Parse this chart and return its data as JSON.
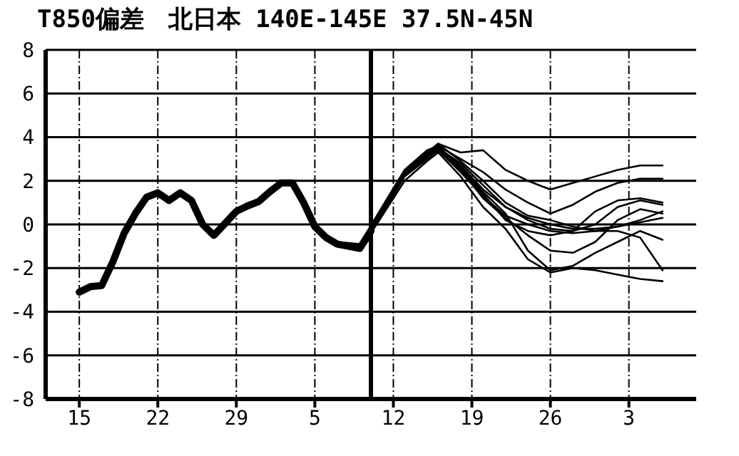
{
  "chart_data": {
    "type": "line",
    "title": "T850偏差　北日本 140E-145E 37.5N-45N",
    "xlim": [
      "--10-12",
      "--12-09"
    ],
    "xticks": [
      {
        "value": "--10-15",
        "label": "15"
      },
      {
        "value": "--10-22",
        "label": "22"
      },
      {
        "value": "--10-29",
        "label": "29"
      },
      {
        "value": "--11-05",
        "label": "5"
      },
      {
        "value": "--11-12",
        "label": "12"
      },
      {
        "value": "--11-19",
        "label": "19"
      },
      {
        "value": "--11-26",
        "label": "26"
      },
      {
        "value": "--12-03",
        "label": "3"
      }
    ],
    "ylim": [
      -8,
      8
    ],
    "yticks": [
      -8,
      -6,
      -4,
      -2,
      0,
      2,
      4,
      6,
      8
    ],
    "grid": true,
    "legend": false,
    "marker": "none",
    "line_style": "solid",
    "ref_lines": [
      {
        "axis": "x",
        "value": "--11-10",
        "color": "#000000"
      }
    ],
    "series": [
      {
        "color": "#000000",
        "x": [
          "--10-15",
          "--10-16",
          "--10-17",
          "--10-18",
          "--10-19",
          "--10-20",
          "--10-21",
          "--10-22",
          "--10-23",
          "--10-24",
          "--10-25",
          "--10-26",
          "--10-27",
          "--10-28",
          "--10-29",
          "--10-30",
          "--10-31",
          "--11-01",
          "--11-02",
          "--11-03",
          "--11-04",
          "--11-05",
          "--11-06",
          "--11-07",
          "--11-08",
          "--11-09",
          "--11-10"
        ],
        "values": [
          -3.1,
          -2.85,
          -2.8,
          -1.7,
          -0.4,
          0.5,
          1.25,
          1.45,
          1.1,
          1.45,
          1.1,
          0,
          -0.5,
          0.05,
          0.6,
          0.85,
          1.05,
          1.5,
          1.9,
          1.9,
          1,
          -0.1,
          -0.6,
          -0.9,
          -1,
          -1.1,
          -0.3
        ]
      },
      {
        "color": "#000000",
        "x": [
          "--11-05",
          "--11-07",
          "--11-09",
          "--11-11",
          "--11-13",
          "--11-15",
          "--11-16",
          "--11-18",
          "--11-20",
          "--11-22",
          "--11-24",
          "--11-26",
          "--11-28",
          "--11-30",
          "--12-02",
          "--12-04",
          "--12-06"
        ],
        "values": [
          -0.2,
          -0.9,
          -1,
          0.7,
          2.4,
          3.3,
          3.7,
          3.3,
          3.4,
          2.5,
          2,
          1.6,
          1.9,
          2.2,
          2.5,
          2.7,
          2.7
        ]
      },
      {
        "color": "#000000",
        "x": [
          "--11-05",
          "--11-07",
          "--11-09",
          "--11-11",
          "--11-13",
          "--11-15",
          "--11-16",
          "--11-18",
          "--11-20",
          "--11-22",
          "--11-24",
          "--11-26",
          "--11-28",
          "--11-30",
          "--12-02",
          "--12-04",
          "--12-06"
        ],
        "values": [
          -0.2,
          -0.9,
          -1.1,
          0.6,
          2.3,
          3.2,
          3.6,
          3,
          2.4,
          1.6,
          1,
          0.5,
          0.9,
          1.5,
          1.9,
          2.1,
          2.1
        ]
      },
      {
        "color": "#000000",
        "x": [
          "--11-05",
          "--11-07",
          "--11-09",
          "--11-11",
          "--11-13",
          "--11-15",
          "--11-16",
          "--11-18",
          "--11-20",
          "--11-22",
          "--11-24",
          "--11-26",
          "--11-28",
          "--11-30",
          "--12-02",
          "--12-04",
          "--12-06"
        ],
        "values": [
          -0.2,
          -1,
          -1.1,
          0.5,
          2.2,
          3.1,
          3.5,
          2.8,
          1.8,
          0.8,
          0.2,
          -0.2,
          -0.3,
          0,
          0.8,
          1.1,
          0.9
        ]
      },
      {
        "color": "#000000",
        "x": [
          "--11-05",
          "--11-07",
          "--11-09",
          "--11-11",
          "--11-13",
          "--11-15",
          "--11-16",
          "--11-18",
          "--11-20",
          "--11-22",
          "--11-24",
          "--11-26",
          "--11-28",
          "--11-30",
          "--12-02",
          "--12-04",
          "--12-06"
        ],
        "values": [
          -0.2,
          -0.9,
          -1,
          0.6,
          2.3,
          3.2,
          3.4,
          2.5,
          1.2,
          0.3,
          -0.5,
          -1.2,
          -1.3,
          -0.8,
          0.2,
          0.7,
          0.5
        ]
      },
      {
        "color": "#000000",
        "x": [
          "--11-05",
          "--11-07",
          "--11-09",
          "--11-11",
          "--11-13",
          "--11-15",
          "--11-16",
          "--11-18",
          "--11-20",
          "--11-22",
          "--11-24",
          "--11-26",
          "--11-28",
          "--11-30",
          "--12-02",
          "--12-04",
          "--12-06"
        ],
        "values": [
          -0.2,
          -0.8,
          -0.9,
          0.8,
          2.5,
          3.4,
          3.6,
          2.6,
          1.5,
          0.5,
          -1.2,
          -2.1,
          -1.9,
          -1.3,
          -0.8,
          -0.3,
          -0.7
        ]
      },
      {
        "color": "#000000",
        "x": [
          "--11-05",
          "--11-07",
          "--11-09",
          "--11-11",
          "--11-13",
          "--11-15",
          "--11-16",
          "--11-18",
          "--11-20",
          "--11-22",
          "--11-24",
          "--11-26",
          "--11-28",
          "--11-30",
          "--12-02",
          "--12-04",
          "--12-06"
        ],
        "values": [
          -0.2,
          -1,
          -1.2,
          0.4,
          2,
          2.9,
          3.3,
          2.2,
          0.8,
          -0.2,
          -1.6,
          -2.2,
          -2,
          -2.1,
          -2.3,
          -2.5,
          -2.6
        ]
      },
      {
        "color": "#000000",
        "x": [
          "--11-05",
          "--11-07",
          "--11-09",
          "--11-11",
          "--11-13",
          "--11-15",
          "--11-16",
          "--11-18",
          "--11-20",
          "--11-22",
          "--11-24",
          "--11-26",
          "--11-28",
          "--11-30",
          "--12-02",
          "--12-04",
          "--12-06"
        ],
        "values": [
          -0.2,
          -0.9,
          -1,
          0.7,
          2.4,
          3.3,
          3.5,
          2.7,
          1.6,
          0.8,
          0.3,
          0,
          -0.2,
          -0.2,
          -0.1,
          0.1,
          0.3
        ]
      },
      {
        "color": "#000000",
        "x": [
          "--11-05",
          "--11-07",
          "--11-09",
          "--11-11",
          "--11-13",
          "--11-15",
          "--11-16",
          "--11-18",
          "--11-20",
          "--11-22",
          "--11-24",
          "--11-26",
          "--11-28",
          "--11-30",
          "--12-02",
          "--12-04",
          "--12-06"
        ],
        "values": [
          -0.2,
          -0.9,
          -1.1,
          0.5,
          2.2,
          3,
          3.4,
          2.4,
          1.3,
          0.4,
          0,
          -0.3,
          -0.4,
          -0.3,
          -0.1,
          0.2,
          0.6
        ]
      },
      {
        "color": "#000000",
        "x": [
          "--11-05",
          "--11-07",
          "--11-09",
          "--11-11",
          "--11-13",
          "--11-15",
          "--11-16",
          "--11-18",
          "--11-20",
          "--11-22",
          "--11-24",
          "--11-26",
          "--11-28",
          "--11-30",
          "--12-02",
          "--12-04",
          "--12-06"
        ],
        "values": [
          -0.2,
          -0.8,
          -1,
          0.7,
          2.4,
          3.3,
          3.7,
          2.9,
          2,
          1,
          0.4,
          0.2,
          -0.1,
          -0.3,
          -0.3,
          -0.6,
          -2.1
        ]
      },
      {
        "color": "#000000",
        "x": [
          "--11-05",
          "--11-07",
          "--11-09",
          "--11-11",
          "--11-13",
          "--11-15",
          "--11-16",
          "--11-18",
          "--11-20",
          "--11-22",
          "--11-24",
          "--11-26",
          "--11-28",
          "--11-30",
          "--12-02",
          "--12-04",
          "--12-06"
        ],
        "values": [
          -0.2,
          -0.9,
          -1,
          0.6,
          2.3,
          3.2,
          3.5,
          2.5,
          1.4,
          0.2,
          -0.3,
          -0.5,
          -0.3,
          0.6,
          1.1,
          1.2,
          1
        ]
      }
    ]
  }
}
